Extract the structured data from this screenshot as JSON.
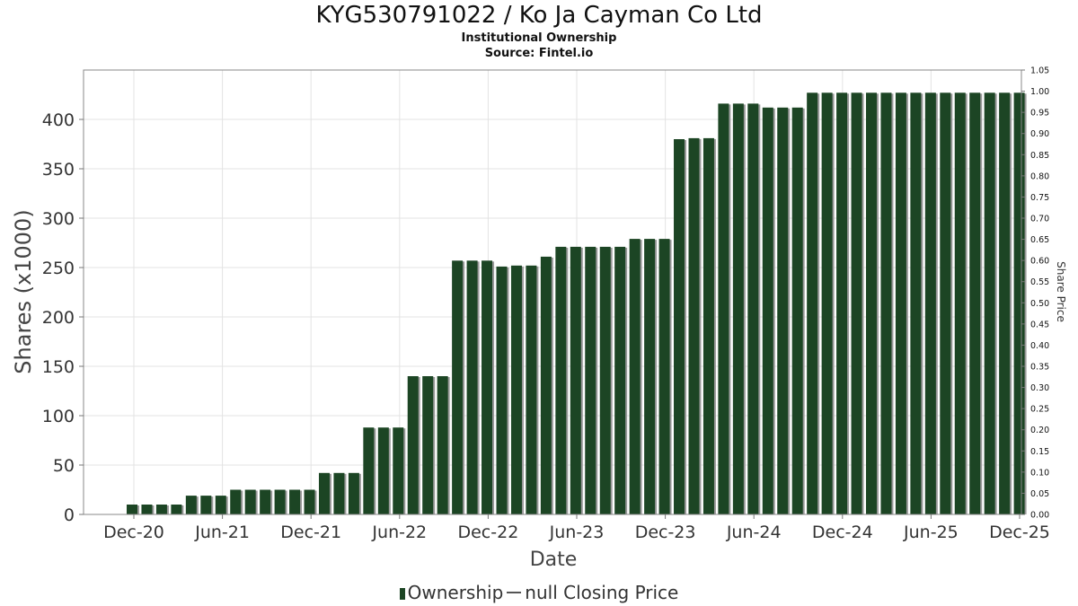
{
  "chart_data": {
    "type": "bar",
    "title": "KYG530791022 / Ko Ja Cayman Co Ltd",
    "subtitle": "Institutional Ownership",
    "source": "Source: Fintel.io",
    "xlabel": "Date",
    "ylabel": "Shares (x1000)",
    "y2label": "Share Price",
    "ylim": [
      0,
      450
    ],
    "y2lim": [
      0,
      1.05
    ],
    "y_ticks": [
      0,
      50,
      100,
      150,
      200,
      250,
      300,
      350,
      400
    ],
    "y2_ticks": [
      "0.00",
      "0.05",
      "0.10",
      "0.15",
      "0.20",
      "0.25",
      "0.30",
      "0.35",
      "0.40",
      "0.45",
      "0.50",
      "0.55",
      "0.60",
      "0.65",
      "0.70",
      "0.75",
      "0.80",
      "0.85",
      "0.90",
      "0.95",
      "1.00",
      "1.05"
    ],
    "x_ticks": [
      "Dec-20",
      "Jun-21",
      "Dec-21",
      "Jun-22",
      "Dec-22",
      "Jun-23",
      "Dec-23",
      "Jun-24",
      "Dec-24",
      "Jun-25",
      "Dec-25"
    ],
    "bar_color": "#1c4524",
    "grid": true,
    "legend_position": "bottom",
    "legend": [
      "Ownership",
      "null Closing Price"
    ],
    "series": [
      {
        "name": "Ownership",
        "values": [
          10,
          10,
          10,
          10,
          19,
          19,
          19,
          25,
          25,
          25,
          25,
          25,
          25,
          42,
          42,
          42,
          88,
          88,
          88,
          140,
          140,
          140,
          257,
          257,
          257,
          251,
          252,
          252,
          261,
          271,
          271,
          271,
          271,
          271,
          279,
          279,
          279,
          380,
          381,
          381,
          416,
          416,
          416,
          412,
          412,
          412,
          427,
          427,
          427,
          427,
          427,
          427,
          427,
          427,
          427,
          427,
          427,
          427,
          427,
          427,
          427
        ]
      }
    ]
  }
}
